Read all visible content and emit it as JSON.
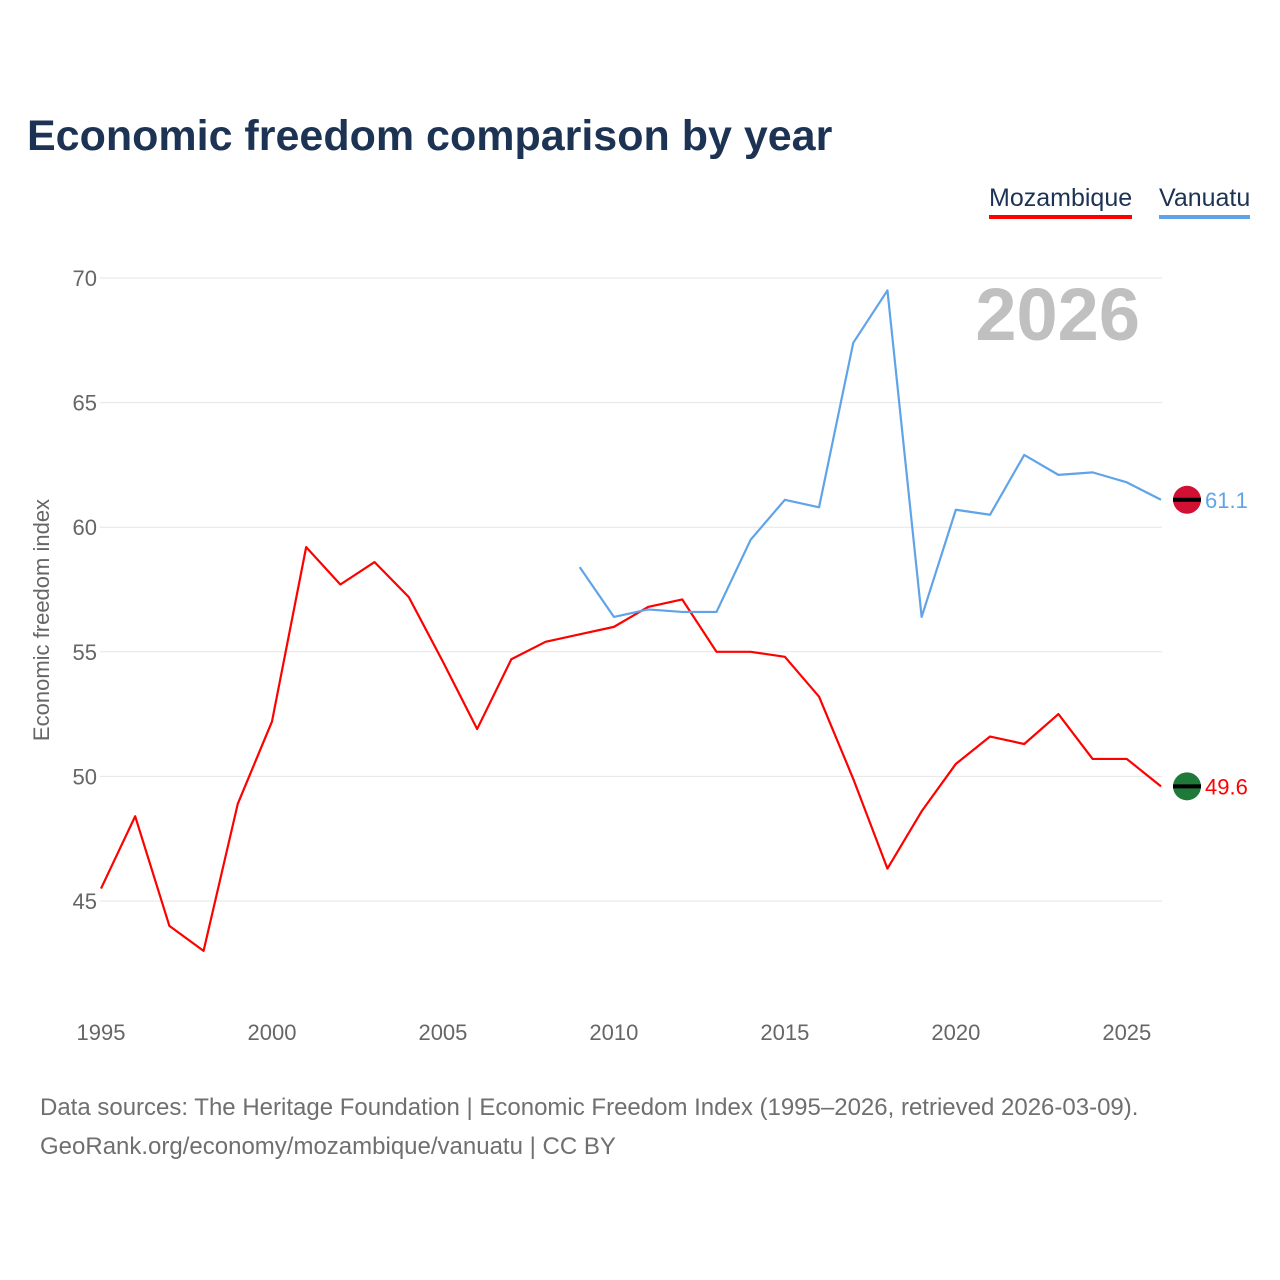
{
  "chart_data": {
    "type": "line",
    "title": "Economic freedom comparison by year",
    "xlabel": "",
    "ylabel": "Economic freedom index",
    "xlim": [
      1995,
      2026
    ],
    "ylim": [
      41,
      70
    ],
    "yticks": [
      45,
      50,
      55,
      60,
      65,
      70
    ],
    "xticks": [
      1995,
      2000,
      2005,
      2010,
      2015,
      2020,
      2025
    ],
    "grid": true,
    "legend_placement": "top-right",
    "year_watermark": "2026",
    "series": [
      {
        "name": "Mozambique",
        "color": "#ff0000",
        "end_label": "49.6",
        "x": [
          1995,
          1996,
          1997,
          1998,
          1999,
          2000,
          2001,
          2002,
          2003,
          2004,
          2005,
          2006,
          2007,
          2008,
          2009,
          2010,
          2011,
          2012,
          2013,
          2014,
          2015,
          2016,
          2017,
          2018,
          2019,
          2020,
          2021,
          2022,
          2023,
          2024,
          2025,
          2026
        ],
        "values": [
          45.5,
          48.4,
          44.0,
          43.0,
          48.9,
          52.2,
          59.2,
          57.7,
          58.6,
          57.2,
          54.6,
          51.9,
          54.7,
          55.4,
          55.7,
          56.0,
          56.8,
          57.1,
          55.0,
          55.0,
          54.8,
          53.2,
          49.9,
          46.3,
          48.6,
          50.5,
          51.6,
          51.3,
          52.5,
          50.7,
          50.7,
          49.6
        ]
      },
      {
        "name": "Vanuatu",
        "color": "#5fa4e8",
        "end_label": "61.1",
        "x": [
          2009,
          2010,
          2011,
          2012,
          2013,
          2014,
          2015,
          2016,
          2017,
          2018,
          2019,
          2020,
          2021,
          2022,
          2023,
          2024,
          2025,
          2026
        ],
        "values": [
          58.4,
          56.4,
          56.7,
          56.6,
          56.6,
          59.5,
          61.1,
          60.8,
          67.4,
          69.5,
          56.4,
          60.7,
          60.5,
          62.9,
          62.1,
          62.2,
          61.8,
          61.1
        ]
      }
    ]
  },
  "source": {
    "line1": "Data sources: The Heritage Foundation | Economic Freedom Index (1995–2026, retrieved 2026-03-09).",
    "line2": "GeoRank.org/economy/mozambique/vanuatu | CC BY"
  }
}
